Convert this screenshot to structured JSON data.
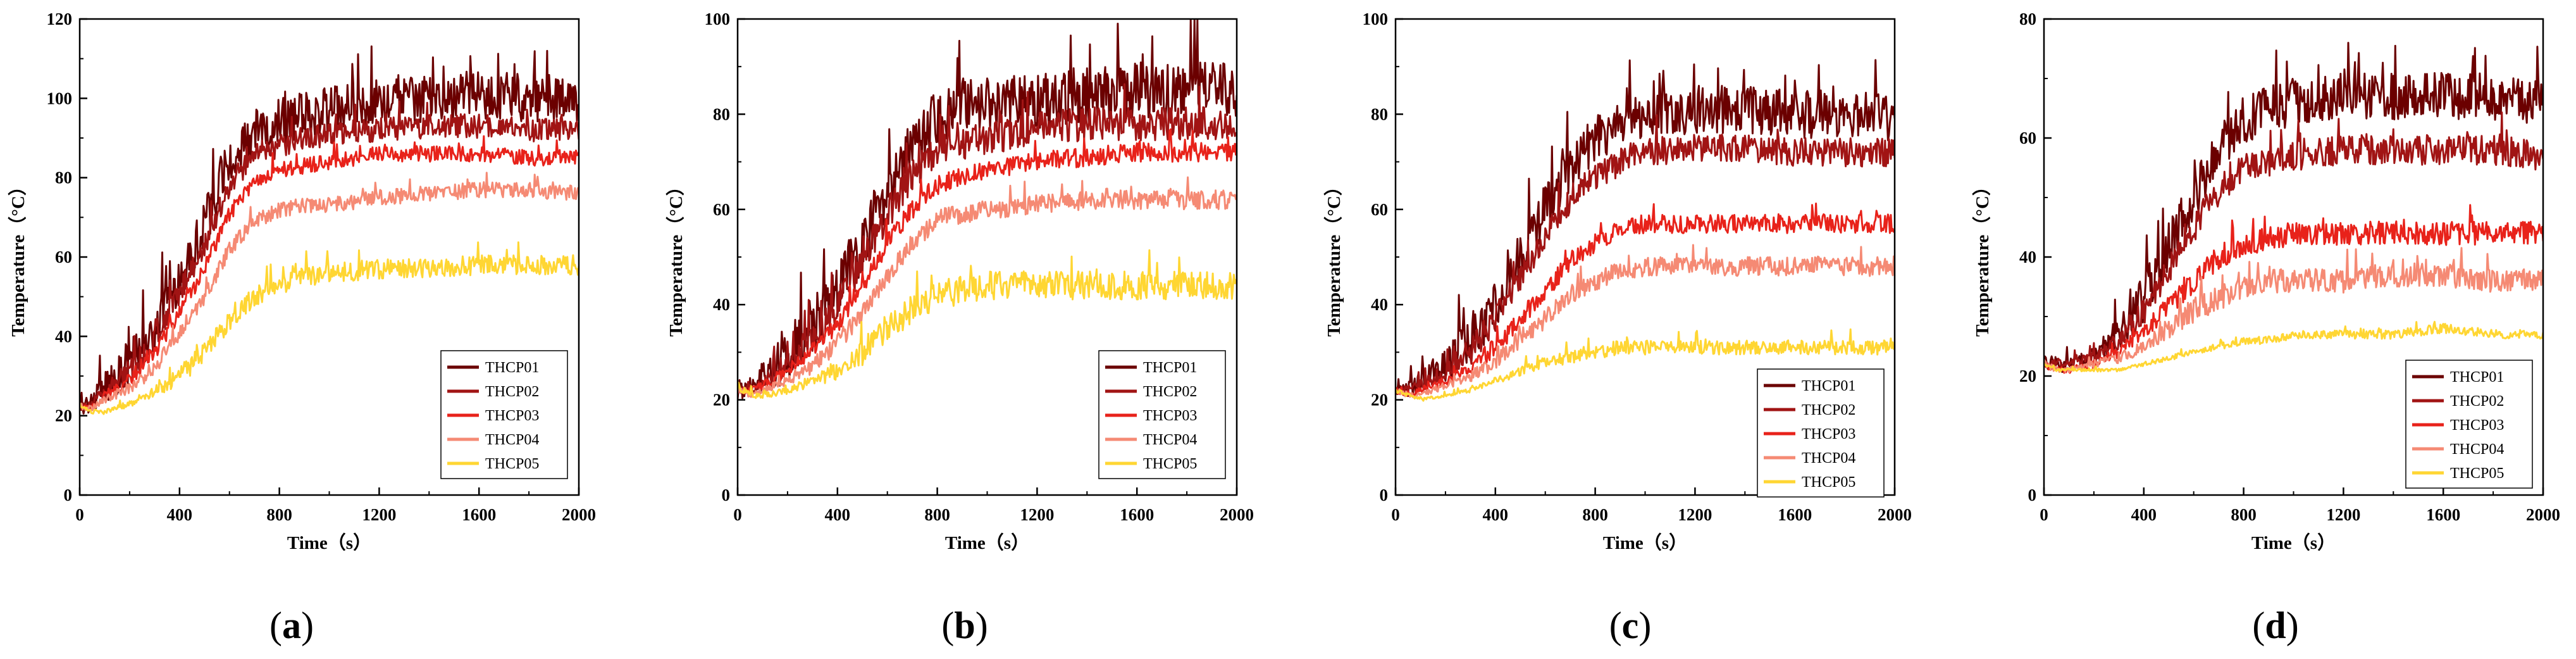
{
  "chart_data": [
    {
      "type": "line",
      "panel_label": "a",
      "xlabel": "Time（s）",
      "ylabel": "Temperature（°C）",
      "xlim": [
        0,
        2000
      ],
      "ylim": [
        0,
        120
      ],
      "xticks": [
        0,
        400,
        800,
        1200,
        1600,
        2000
      ],
      "yticks": [
        0,
        20,
        40,
        60,
        80,
        100,
        120
      ],
      "legend_position": "bottom-right",
      "series": [
        {
          "name": "THCP01",
          "color": "#6b0000",
          "x": [
            0,
            50,
            100,
            200,
            300,
            400,
            500,
            600,
            700,
            800,
            900,
            1000,
            1200,
            1400,
            1600,
            1800,
            2000
          ],
          "y": [
            22,
            24,
            27,
            33,
            42,
            55,
            68,
            84,
            91,
            94,
            96,
            97,
            99,
            100,
            101,
            100,
            100
          ],
          "noise": 6
        },
        {
          "name": "THCP02",
          "color": "#a11414",
          "x": [
            0,
            50,
            100,
            200,
            300,
            400,
            500,
            600,
            700,
            800,
            900,
            1000,
            1200,
            1400,
            1600,
            1800,
            2000
          ],
          "y": [
            22,
            23,
            26,
            31,
            39,
            51,
            63,
            78,
            86,
            88,
            90,
            91,
            92,
            93,
            93,
            92,
            92
          ],
          "noise": 3
        },
        {
          "name": "THCP03",
          "color": "#e8221a",
          "x": [
            0,
            50,
            100,
            200,
            300,
            400,
            500,
            600,
            700,
            800,
            900,
            1000,
            1200,
            1400,
            1600,
            1800,
            2000
          ],
          "y": [
            22,
            22,
            25,
            29,
            36,
            46,
            57,
            71,
            79,
            82,
            83,
            84,
            86,
            86,
            86,
            85,
            85
          ],
          "noise": 2
        },
        {
          "name": "THCP04",
          "color": "#f58a74",
          "x": [
            0,
            50,
            100,
            200,
            300,
            400,
            500,
            600,
            700,
            800,
            900,
            1000,
            1200,
            1400,
            1600,
            1800,
            2000
          ],
          "y": [
            22,
            22,
            24,
            27,
            32,
            41,
            50,
            62,
            69,
            72,
            73,
            73,
            75,
            76,
            77,
            77,
            76
          ],
          "noise": 2
        },
        {
          "name": "THCP05",
          "color": "#ffd633",
          "x": [
            0,
            50,
            100,
            200,
            300,
            400,
            500,
            600,
            700,
            800,
            900,
            1000,
            1200,
            1400,
            1600,
            1800,
            2000
          ],
          "y": [
            23,
            21,
            21,
            23,
            26,
            30,
            36,
            44,
            50,
            53,
            55,
            56,
            57,
            57,
            58,
            58,
            58
          ],
          "noise": 2.5
        }
      ]
    },
    {
      "type": "line",
      "panel_label": "b",
      "xlabel": "Time（s）",
      "ylabel": "Temperature（°C）",
      "xlim": [
        0,
        2000
      ],
      "ylim": [
        0,
        100
      ],
      "xticks": [
        0,
        400,
        800,
        1200,
        1600,
        2000
      ],
      "yticks": [
        0,
        20,
        40,
        60,
        80,
        100
      ],
      "legend_position": "bottom-right",
      "series": [
        {
          "name": "THCP01",
          "color": "#6b0000",
          "x": [
            0,
            50,
            100,
            200,
            300,
            400,
            500,
            600,
            700,
            800,
            900,
            1000,
            1200,
            1400,
            1600,
            1800,
            2000
          ],
          "y": [
            22,
            23,
            25,
            29,
            35,
            43,
            53,
            64,
            73,
            79,
            81,
            82,
            83,
            84,
            85,
            85,
            85
          ],
          "noise": 6
        },
        {
          "name": "THCP02",
          "color": "#a11414",
          "x": [
            0,
            50,
            100,
            200,
            300,
            400,
            500,
            600,
            700,
            800,
            900,
            1000,
            1200,
            1400,
            1600,
            1800,
            2000
          ],
          "y": [
            22,
            22,
            24,
            28,
            33,
            40,
            49,
            59,
            67,
            72,
            74,
            75,
            77,
            78,
            78,
            78,
            78
          ],
          "noise": 3.5
        },
        {
          "name": "THCP03",
          "color": "#e8221a",
          "x": [
            0,
            50,
            100,
            200,
            300,
            400,
            500,
            600,
            700,
            800,
            900,
            1000,
            1200,
            1400,
            1600,
            1800,
            2000
          ],
          "y": [
            22,
            22,
            23,
            26,
            30,
            36,
            44,
            53,
            60,
            65,
            67,
            68,
            70,
            71,
            72,
            72,
            72
          ],
          "noise": 2
        },
        {
          "name": "THCP04",
          "color": "#f58a74",
          "x": [
            0,
            50,
            100,
            200,
            300,
            400,
            500,
            600,
            700,
            800,
            900,
            1000,
            1200,
            1400,
            1600,
            1800,
            2000
          ],
          "y": [
            22,
            21,
            22,
            24,
            27,
            32,
            38,
            46,
            53,
            58,
            59,
            60,
            61,
            62,
            62,
            62,
            62
          ],
          "noise": 2
        },
        {
          "name": "THCP05",
          "color": "#ffd633",
          "x": [
            0,
            50,
            100,
            200,
            300,
            400,
            500,
            600,
            700,
            800,
            900,
            1000,
            1200,
            1400,
            1600,
            1800,
            2000
          ],
          "y": [
            23,
            21,
            21,
            22,
            24,
            26,
            30,
            35,
            39,
            42,
            43,
            44,
            44,
            44,
            44,
            44,
            44
          ],
          "noise": 3
        }
      ]
    },
    {
      "type": "line",
      "panel_label": "c",
      "xlabel": "Time（s）",
      "ylabel": "Temperature（°C）",
      "xlim": [
        0,
        2000
      ],
      "ylim": [
        0,
        100
      ],
      "xticks": [
        0,
        400,
        800,
        1200,
        1600,
        2000
      ],
      "yticks": [
        0,
        20,
        40,
        60,
        80,
        100
      ],
      "legend_position": "bottom-right",
      "series": [
        {
          "name": "THCP01",
          "color": "#6b0000",
          "x": [
            0,
            50,
            100,
            200,
            300,
            400,
            500,
            600,
            700,
            800,
            900,
            1000,
            1200,
            1400,
            1600,
            1800,
            2000
          ],
          "y": [
            22,
            22,
            24,
            27,
            32,
            40,
            50,
            60,
            69,
            75,
            78,
            80,
            81,
            81,
            80,
            80,
            79
          ],
          "noise": 5
        },
        {
          "name": "THCP02",
          "color": "#a11414",
          "x": [
            0,
            50,
            100,
            200,
            300,
            400,
            500,
            600,
            700,
            800,
            900,
            1000,
            1200,
            1400,
            1600,
            1800,
            2000
          ],
          "y": [
            22,
            22,
            23,
            26,
            30,
            37,
            45,
            54,
            62,
            67,
            70,
            72,
            73,
            73,
            72,
            72,
            72
          ],
          "noise": 3
        },
        {
          "name": "THCP03",
          "color": "#e8221a",
          "x": [
            0,
            50,
            100,
            200,
            300,
            400,
            500,
            600,
            700,
            800,
            900,
            1000,
            1200,
            1400,
            1600,
            1800,
            2000
          ],
          "y": [
            22,
            21,
            22,
            24,
            27,
            31,
            37,
            43,
            49,
            53,
            56,
            57,
            57,
            57,
            57,
            57,
            57
          ],
          "noise": 2
        },
        {
          "name": "THCP04",
          "color": "#f58a74",
          "x": [
            0,
            50,
            100,
            200,
            300,
            400,
            500,
            600,
            700,
            800,
            900,
            1000,
            1200,
            1400,
            1600,
            1800,
            2000
          ],
          "y": [
            22,
            21,
            21,
            23,
            25,
            28,
            33,
            37,
            42,
            45,
            47,
            48,
            48,
            48,
            48,
            48,
            48
          ],
          "noise": 2
        },
        {
          "name": "THCP05",
          "color": "#ffd633",
          "x": [
            0,
            50,
            100,
            200,
            300,
            400,
            500,
            600,
            700,
            800,
            900,
            1000,
            1200,
            1400,
            1600,
            1800,
            2000
          ],
          "y": [
            22,
            21,
            20,
            21,
            22,
            24,
            26,
            28,
            29,
            30,
            31,
            31,
            31,
            31,
            31,
            31,
            31
          ],
          "noise": 1.5
        }
      ]
    },
    {
      "type": "line",
      "panel_label": "d",
      "xlabel": "Time（s）",
      "ylabel": "Temperature（°C）",
      "xlim": [
        0,
        2000
      ],
      "ylim": [
        0,
        80
      ],
      "xticks": [
        0,
        400,
        800,
        1200,
        1600,
        2000
      ],
      "yticks": [
        0,
        20,
        40,
        60,
        80
      ],
      "legend_position": "bottom-right",
      "series": [
        {
          "name": "THCP01",
          "color": "#6b0000",
          "x": [
            0,
            50,
            100,
            200,
            300,
            400,
            500,
            600,
            700,
            800,
            900,
            1000,
            1200,
            1400,
            1600,
            1800,
            2000
          ],
          "y": [
            22,
            22,
            22,
            23,
            27,
            33,
            42,
            50,
            58,
            63,
            65,
            66,
            67,
            67,
            67,
            67,
            66
          ],
          "noise": 4
        },
        {
          "name": "THCP02",
          "color": "#a11414",
          "x": [
            0,
            50,
            100,
            200,
            300,
            400,
            500,
            600,
            700,
            800,
            900,
            1000,
            1200,
            1400,
            1600,
            1800,
            2000
          ],
          "y": [
            22,
            22,
            22,
            23,
            26,
            31,
            38,
            45,
            51,
            55,
            56,
            57,
            58,
            58,
            58,
            58,
            57
          ],
          "noise": 2.5
        },
        {
          "name": "THCP03",
          "color": "#e8221a",
          "x": [
            0,
            50,
            100,
            200,
            300,
            400,
            500,
            600,
            700,
            800,
            900,
            1000,
            1200,
            1400,
            1600,
            1800,
            2000
          ],
          "y": [
            22,
            21,
            21,
            22,
            24,
            28,
            32,
            36,
            40,
            42,
            43,
            44,
            44,
            44,
            44,
            44,
            44
          ],
          "noise": 2
        },
        {
          "name": "THCP04",
          "color": "#f58a74",
          "x": [
            0,
            50,
            100,
            200,
            300,
            400,
            500,
            600,
            700,
            800,
            900,
            1000,
            1200,
            1400,
            1600,
            1800,
            2000
          ],
          "y": [
            22,
            21,
            21,
            22,
            23,
            25,
            28,
            31,
            33,
            35,
            36,
            36,
            36,
            37,
            37,
            36,
            36
          ],
          "noise": 2
        },
        {
          "name": "THCP05",
          "color": "#ffd633",
          "x": [
            0,
            50,
            100,
            200,
            300,
            400,
            500,
            600,
            700,
            800,
            900,
            1000,
            1200,
            1400,
            1600,
            1800,
            2000
          ],
          "y": [
            22,
            21,
            21,
            21,
            21,
            22,
            23,
            24,
            25,
            26,
            26,
            27,
            27,
            27,
            28,
            27,
            27
          ],
          "noise": 1
        }
      ]
    }
  ]
}
